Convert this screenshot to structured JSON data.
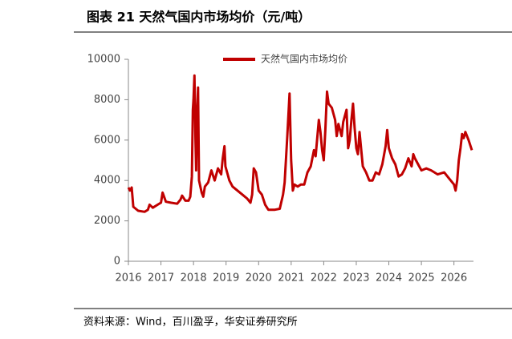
{
  "chart_data": {
    "type": "line",
    "title": "图表 21 天然气国内市场均价（元/吨）",
    "x": [
      2016.0,
      2016.05,
      2016.1,
      2016.15,
      2016.3,
      2016.5,
      2016.6,
      2016.65,
      2016.75,
      2016.9,
      2017.0,
      2017.05,
      2017.15,
      2017.3,
      2017.5,
      2017.6,
      2017.65,
      2017.75,
      2017.85,
      2017.9,
      2017.95,
      2017.98,
      2018.0,
      2018.03,
      2018.06,
      2018.08,
      2018.1,
      2018.14,
      2018.17,
      2018.25,
      2018.3,
      2018.35,
      2018.45,
      2018.55,
      2018.65,
      2018.75,
      2018.85,
      2018.9,
      2018.95,
      2018.98,
      2019.05,
      2019.1,
      2019.2,
      2019.35,
      2019.5,
      2019.65,
      2019.75,
      2019.8,
      2019.85,
      2019.92,
      2020.0,
      2020.1,
      2020.2,
      2020.3,
      2020.5,
      2020.65,
      2020.75,
      2020.8,
      2020.88,
      2020.95,
      2021.0,
      2021.05,
      2021.1,
      2021.2,
      2021.3,
      2021.4,
      2021.5,
      2021.6,
      2021.7,
      2021.75,
      2021.85,
      2021.9,
      2021.95,
      2022.0,
      2022.05,
      2022.1,
      2022.15,
      2022.25,
      2022.35,
      2022.4,
      2022.45,
      2022.55,
      2022.6,
      2022.7,
      2022.75,
      2022.8,
      2022.85,
      2022.9,
      2022.95,
      2023.0,
      2023.05,
      2023.1,
      2023.2,
      2023.3,
      2023.4,
      2023.5,
      2023.6,
      2023.7,
      2023.8,
      2023.9,
      2023.95,
      2024.0,
      2024.1,
      2024.2,
      2024.3,
      2024.4,
      2024.5,
      2024.6,
      2024.7,
      2024.75,
      2024.8,
      2024.9,
      2025.0,
      2025.15,
      2025.3,
      2025.5,
      2025.7,
      2025.85,
      2026.0,
      2026.05,
      2026.1,
      2026.15,
      2026.2,
      2026.25,
      2026.3,
      2026.35,
      2026.45,
      2026.55
    ],
    "series": [
      {
        "name": "天然气国内市场均价",
        "color": "#c00000",
        "values": [
          3650,
          3500,
          3650,
          2700,
          2500,
          2450,
          2550,
          2800,
          2650,
          2800,
          2900,
          3400,
          2950,
          2900,
          2850,
          3050,
          3250,
          3000,
          3000,
          3200,
          4200,
          7500,
          8000,
          9200,
          6000,
          4500,
          7000,
          8600,
          4000,
          3400,
          3200,
          3700,
          3900,
          4500,
          4000,
          4600,
          4300,
          5100,
          5700,
          4700,
          4300,
          4000,
          3700,
          3500,
          3300,
          3100,
          2900,
          3300,
          4600,
          4400,
          3500,
          3300,
          2800,
          2550,
          2550,
          2600,
          3300,
          3900,
          6200,
          8300,
          5000,
          3500,
          3800,
          3700,
          3800,
          3800,
          4400,
          4700,
          5500,
          5200,
          7000,
          6400,
          5500,
          5000,
          6500,
          8400,
          7800,
          7600,
          7000,
          6200,
          6800,
          6200,
          6900,
          7500,
          5600,
          6000,
          7000,
          7800,
          6600,
          5600,
          5300,
          6400,
          4700,
          4400,
          4000,
          4000,
          4400,
          4300,
          4800,
          5700,
          6500,
          5600,
          5100,
          4800,
          4200,
          4300,
          4600,
          5100,
          4700,
          5300,
          5100,
          4800,
          4500,
          4600,
          4500,
          4300,
          4400,
          4100,
          3800,
          3500,
          4000,
          5000,
          5600,
          6300,
          6100,
          6400,
          6000,
          5500
        ]
      }
    ],
    "xlim": [
      2016,
      2026.6
    ],
    "xticks": [
      2016,
      2017,
      2018,
      2019,
      2020,
      2021,
      2022,
      2023,
      2024,
      2025,
      2026
    ],
    "ylim": [
      0,
      10000
    ],
    "yticks": [
      0,
      2000,
      4000,
      6000,
      8000,
      10000
    ],
    "grid": false
  },
  "source": "资料来源：Wind，百川盈孚，华安证券研究所"
}
